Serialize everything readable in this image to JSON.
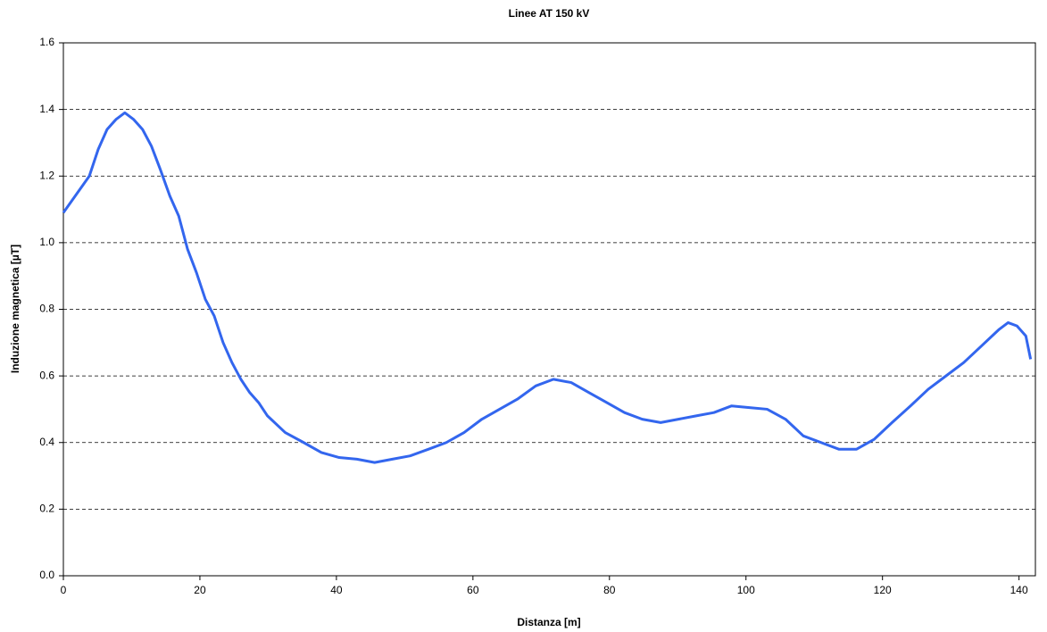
{
  "chart_data": {
    "type": "line",
    "title": "Linee AT 150 kV",
    "x_label": "Distanza [m]",
    "y_label": "Induzione magnetica [µT]",
    "x": [
      0,
      3.8,
      5.1,
      6.4,
      7.7,
      9.0,
      10.3,
      11.6,
      12.9,
      14.2,
      15.6,
      16.9,
      18.2,
      19.5,
      20.8,
      22.1,
      23.4,
      24.7,
      26.0,
      27.3,
      28.6,
      29.9,
      32.5,
      35.2,
      37.8,
      40.4,
      43.0,
      45.6,
      48.2,
      50.8,
      53.5,
      56.1,
      58.7,
      61.3,
      63.9,
      66.5,
      69.2,
      71.8,
      74.4,
      77.0,
      79.6,
      82.2,
      84.8,
      87.5,
      90.1,
      92.7,
      95.3,
      97.9,
      100.5,
      103.1,
      105.8,
      108.4,
      111.0,
      113.6,
      116.2,
      118.8,
      121.4,
      124.1,
      126.7,
      129.3,
      131.9,
      134.5,
      137.1,
      138.4,
      139.7,
      141.0,
      141.7
    ],
    "series": [
      {
        "name": "Induzione",
        "color": "#3366ee",
        "values": [
          1.09,
          1.2,
          1.28,
          1.34,
          1.37,
          1.39,
          1.37,
          1.34,
          1.29,
          1.22,
          1.14,
          1.08,
          0.98,
          0.91,
          0.83,
          0.78,
          0.7,
          0.64,
          0.59,
          0.55,
          0.52,
          0.48,
          0.43,
          0.4,
          0.37,
          0.355,
          0.35,
          0.34,
          0.35,
          0.36,
          0.38,
          0.4,
          0.43,
          0.47,
          0.5,
          0.53,
          0.57,
          0.59,
          0.58,
          0.55,
          0.52,
          0.49,
          0.47,
          0.46,
          0.47,
          0.48,
          0.49,
          0.51,
          0.505,
          0.5,
          0.47,
          0.42,
          0.4,
          0.38,
          0.38,
          0.41,
          0.46,
          0.51,
          0.56,
          0.6,
          0.64,
          0.69,
          0.74,
          0.76,
          0.75,
          0.72,
          0.65
        ]
      }
    ],
    "xlim": [
      0,
      142.4
    ],
    "xticks": [
      0,
      20,
      40,
      60,
      80,
      100,
      120,
      140
    ],
    "ylim": [
      0,
      1.6
    ],
    "yticks": [
      {
        "value": 0,
        "label": "0.0"
      },
      {
        "value": 0.2,
        "label": "0.2"
      },
      {
        "value": 0.4,
        "label": "0.4"
      },
      {
        "value": 0.6,
        "label": "0.6"
      },
      {
        "value": 0.8,
        "label": "0.8"
      },
      {
        "value": 1.0,
        "label": "1.0"
      },
      {
        "value": 1.2,
        "label": "1.2"
      },
      {
        "value": 1.4,
        "label": "1.4"
      },
      {
        "value": 1.6,
        "label": "1.6"
      }
    ],
    "grid": true
  }
}
